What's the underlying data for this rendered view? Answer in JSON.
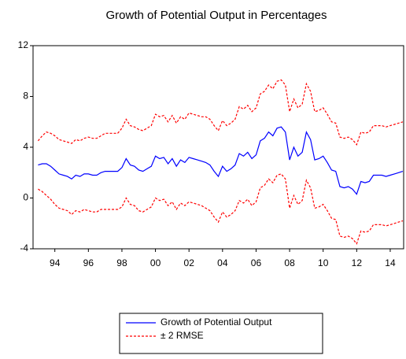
{
  "chart_data": {
    "type": "line",
    "title": "Growth of Potential Output in Percentages",
    "x": [
      1993,
      1993.25,
      1993.5,
      1993.75,
      1994,
      1994.25,
      1994.5,
      1994.75,
      1995,
      1995.25,
      1995.5,
      1995.75,
      1996,
      1996.25,
      1996.5,
      1996.75,
      1997,
      1997.25,
      1997.5,
      1997.75,
      1998,
      1998.25,
      1998.5,
      1998.75,
      1999,
      1999.25,
      1999.5,
      1999.75,
      2000,
      2000.25,
      2000.5,
      2000.75,
      2001,
      2001.25,
      2001.5,
      2001.75,
      2002,
      2002.25,
      2002.5,
      2002.75,
      2003,
      2003.25,
      2003.5,
      2003.75,
      2004,
      2004.25,
      2004.5,
      2004.75,
      2005,
      2005.25,
      2005.5,
      2005.75,
      2006,
      2006.25,
      2006.5,
      2006.75,
      2007,
      2007.25,
      2007.5,
      2007.75,
      2008,
      2008.25,
      2008.5,
      2008.75,
      2009,
      2009.25,
      2009.5,
      2009.75,
      2010,
      2010.25,
      2010.5,
      2010.75,
      2011,
      2011.25,
      2011.5,
      2011.75,
      2012,
      2012.25,
      2012.5,
      2012.75,
      2013,
      2013.25,
      2013.5,
      2013.75,
      2014,
      2014.25,
      2014.5,
      2014.75
    ],
    "series": [
      {
        "name": "Growth of Potential Output",
        "color": "#0000ff",
        "dash": false,
        "values": [
          2.6,
          2.7,
          2.7,
          2.5,
          2.2,
          1.9,
          1.8,
          1.7,
          1.5,
          1.8,
          1.7,
          1.9,
          1.9,
          1.8,
          1.8,
          2.0,
          2.1,
          2.1,
          2.1,
          2.1,
          2.4,
          3.1,
          2.6,
          2.5,
          2.2,
          2.1,
          2.3,
          2.5,
          3.3,
          3.1,
          3.2,
          2.7,
          3.1,
          2.5,
          3.0,
          2.8,
          3.2,
          3.1,
          3.0,
          2.9,
          2.8,
          2.6,
          2.1,
          1.7,
          2.5,
          2.1,
          2.3,
          2.6,
          3.5,
          3.3,
          3.6,
          3.1,
          3.4,
          4.5,
          4.7,
          5.2,
          4.9,
          5.5,
          5.6,
          5.2,
          3.0,
          4.0,
          3.3,
          3.6,
          5.2,
          4.6,
          3.0,
          3.1,
          3.3,
          2.8,
          2.2,
          2.1,
          0.9,
          0.8,
          0.9,
          0.7,
          0.3,
          1.3,
          1.2,
          1.3,
          1.8,
          1.8,
          1.8,
          1.7,
          1.8,
          1.9,
          2.0,
          2.1
        ]
      },
      {
        "name": "± 2 RMSE",
        "color": "#ff0000",
        "dash": true,
        "values": [
          4.5,
          4.9,
          5.2,
          5.1,
          4.9,
          4.6,
          4.5,
          4.4,
          4.3,
          4.6,
          4.5,
          4.7,
          4.8,
          4.7,
          4.7,
          4.9,
          5.1,
          5.1,
          5.1,
          5.1,
          5.5,
          6.2,
          5.7,
          5.6,
          5.4,
          5.3,
          5.5,
          5.7,
          6.6,
          6.4,
          6.5,
          6.0,
          6.5,
          5.9,
          6.4,
          6.2,
          6.7,
          6.6,
          6.5,
          6.4,
          6.4,
          6.2,
          5.7,
          5.3,
          6.1,
          5.7,
          5.9,
          6.2,
          7.2,
          7.0,
          7.3,
          6.8,
          7.1,
          8.2,
          8.4,
          8.9,
          8.6,
          9.2,
          9.3,
          8.9,
          6.8,
          7.8,
          7.1,
          7.4,
          9.0,
          8.4,
          6.8,
          6.9,
          7.1,
          6.6,
          6.0,
          5.9,
          4.8,
          4.7,
          4.8,
          4.6,
          4.2,
          5.2,
          5.1,
          5.2,
          5.7,
          5.7,
          5.7,
          5.6,
          5.7,
          5.8,
          5.9,
          6.0
        ]
      },
      {
        "color": "#ff0000",
        "dash": true,
        "values": [
          0.7,
          0.5,
          0.2,
          -0.1,
          -0.5,
          -0.8,
          -0.9,
          -1.0,
          -1.3,
          -1.0,
          -1.1,
          -0.9,
          -1.0,
          -1.1,
          -1.1,
          -0.9,
          -0.9,
          -0.9,
          -0.9,
          -0.9,
          -0.7,
          0.0,
          -0.5,
          -0.6,
          -1.0,
          -1.1,
          -0.9,
          -0.7,
          0.0,
          -0.2,
          -0.1,
          -0.6,
          -0.3,
          -0.9,
          -0.4,
          -0.6,
          -0.3,
          -0.4,
          -0.5,
          -0.6,
          -0.8,
          -1.0,
          -1.5,
          -1.9,
          -1.1,
          -1.5,
          -1.3,
          -1.0,
          -0.2,
          -0.4,
          -0.1,
          -0.6,
          -0.3,
          0.8,
          1.0,
          1.5,
          1.2,
          1.8,
          1.9,
          1.5,
          -0.8,
          0.2,
          -0.5,
          -0.2,
          1.4,
          0.8,
          -0.8,
          -0.7,
          -0.5,
          -1.0,
          -1.6,
          -1.7,
          -3.0,
          -3.1,
          -3.0,
          -3.2,
          -3.6,
          -2.6,
          -2.7,
          -2.6,
          -2.1,
          -2.1,
          -2.1,
          -2.2,
          -2.1,
          -2.0,
          -1.9,
          -1.8
        ]
      }
    ],
    "xlim": [
      1992.7,
      2014.8
    ],
    "xticks": [
      {
        "value": 1994,
        "label": "94"
      },
      {
        "value": 1996,
        "label": "96"
      },
      {
        "value": 1998,
        "label": "98"
      },
      {
        "value": 2000,
        "label": "00"
      },
      {
        "value": 2002,
        "label": "02"
      },
      {
        "value": 2004,
        "label": "04"
      },
      {
        "value": 2006,
        "label": "06"
      },
      {
        "value": 2008,
        "label": "08"
      },
      {
        "value": 2010,
        "label": "10"
      },
      {
        "value": 2012,
        "label": "12"
      },
      {
        "value": 2014,
        "label": "14"
      }
    ],
    "ylim": [
      -4,
      12
    ],
    "yticks": [
      -4,
      0,
      4,
      8,
      12
    ],
    "grid": false,
    "legend": "bottom"
  }
}
